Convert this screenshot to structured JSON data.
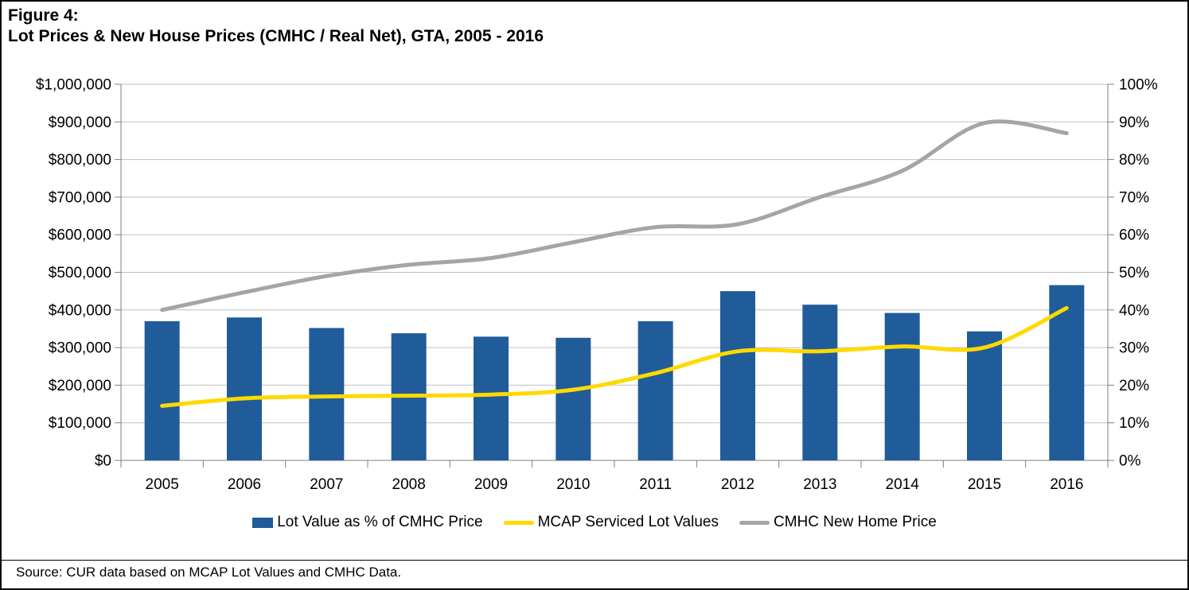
{
  "title": {
    "line1": "Figure 4:",
    "line2": "Lot Prices & New House Prices (CMHC / Real Net), GTA, 2005 - 2016"
  },
  "source_note": "Source: CUR data based on MCAP Lot Values and CMHC Data.",
  "legend": [
    {
      "label": "Lot Value as % of CMHC Price",
      "marker": "bar",
      "color": "#1F5C99"
    },
    {
      "label": "MCAP Serviced Lot Values",
      "marker": "line",
      "color": "#FFD900"
    },
    {
      "label": "CMHC New Home Price",
      "marker": "line",
      "color": "#A5A5A5"
    }
  ],
  "colors": {
    "bar_blue": "#1F5C99",
    "line_yellow": "#FFD900",
    "line_gray": "#A5A5A5",
    "gridline": "#BFBFBF",
    "axis": "#7F7F7F",
    "text": "#000000"
  },
  "chart_data": {
    "type": "bar",
    "subtype": "combo-bar-line-dual-axis",
    "title": "Lot Prices & New House Prices (CMHC / Real Net), GTA, 2005 - 2016",
    "categories": [
      "2005",
      "2006",
      "2007",
      "2008",
      "2009",
      "2010",
      "2011",
      "2012",
      "2013",
      "2014",
      "2015",
      "2016"
    ],
    "series": [
      {
        "name": "Lot Value as % of CMHC Price",
        "type": "bar",
        "axis": "right",
        "unit": "%",
        "color": "#1F5C99",
        "values": [
          37.0,
          38.0,
          35.2,
          33.8,
          32.9,
          32.6,
          37.0,
          45.0,
          41.4,
          39.2,
          34.3,
          46.6
        ]
      },
      {
        "name": "MCAP Serviced Lot Values",
        "type": "line",
        "axis": "left",
        "unit": "$",
        "color": "#FFD900",
        "smooth": true,
        "values": [
          145000,
          165000,
          170000,
          172000,
          175000,
          188000,
          232000,
          290000,
          290000,
          303000,
          300000,
          405000
        ]
      },
      {
        "name": "CMHC New Home Price",
        "type": "line",
        "axis": "left",
        "unit": "$",
        "color": "#A5A5A5",
        "smooth": true,
        "values": [
          400000,
          447000,
          490000,
          520000,
          538000,
          580000,
          620000,
          628000,
          700000,
          770000,
          897000,
          870000
        ]
      }
    ],
    "left_axis": {
      "min": 0,
      "max": 1000000,
      "step": 100000,
      "ticks": [
        "$0",
        "$100,000",
        "$200,000",
        "$300,000",
        "$400,000",
        "$500,000",
        "$600,000",
        "$700,000",
        "$800,000",
        "$900,000",
        "$1,000,000"
      ]
    },
    "right_axis": {
      "min": 0,
      "max": 100,
      "step": 10,
      "ticks": [
        "0%",
        "10%",
        "20%",
        "30%",
        "40%",
        "50%",
        "60%",
        "70%",
        "80%",
        "90%",
        "100%"
      ]
    },
    "grid": true,
    "legend_position": "bottom"
  }
}
